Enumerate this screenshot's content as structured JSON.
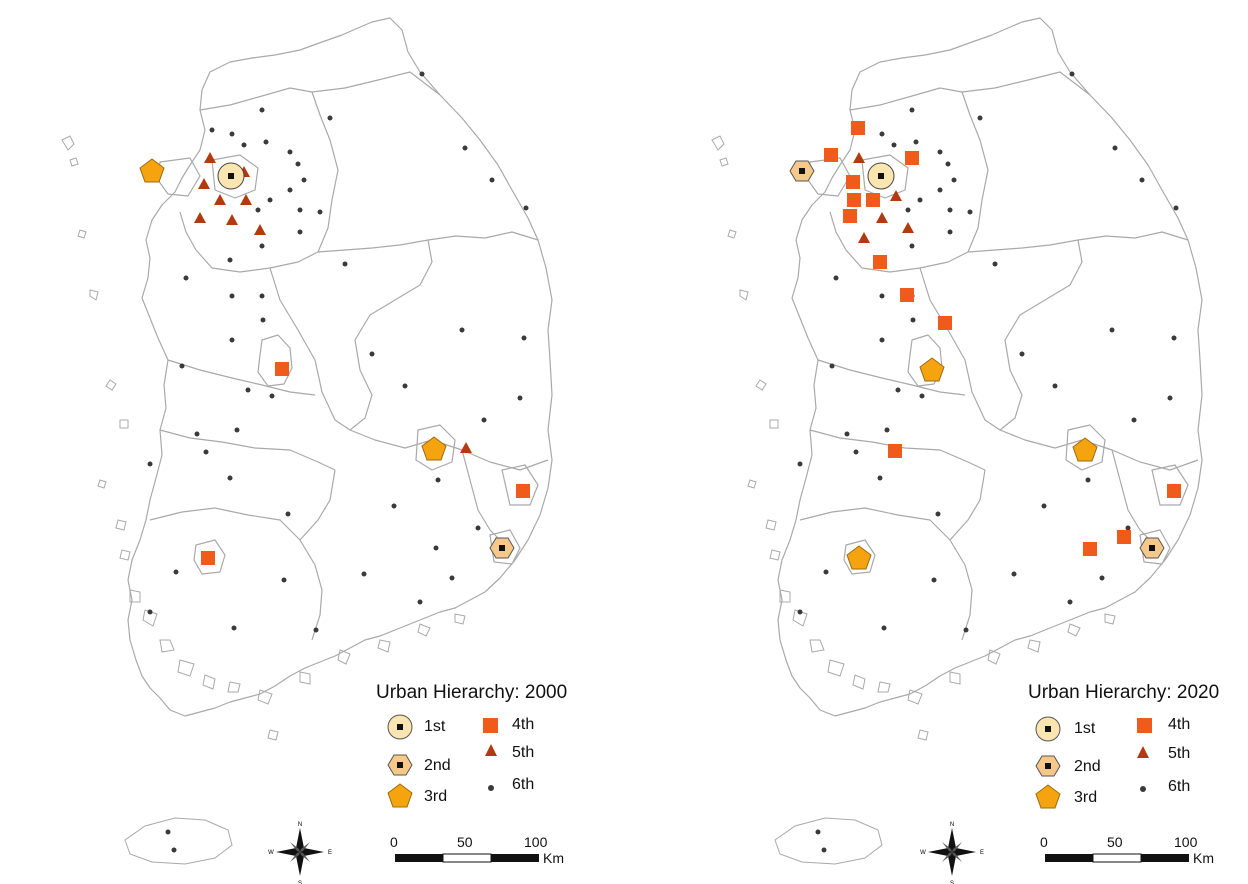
{
  "maps": [
    {
      "id": "map-2000",
      "legend": {
        "title": "Urban Hierarchy: 2000",
        "items": [
          {
            "rank": "1st",
            "label": "1st"
          },
          {
            "rank": "2nd",
            "label": "2nd"
          },
          {
            "rank": "3rd",
            "label": "3rd"
          },
          {
            "rank": "4th",
            "label": "4th"
          },
          {
            "rank": "5th",
            "label": "5th"
          },
          {
            "rank": "6th",
            "label": "6th"
          }
        ]
      },
      "scale": {
        "ticks": [
          "0",
          "50",
          "100"
        ],
        "unit": "Km"
      }
    },
    {
      "id": "map-2020",
      "legend": {
        "title": "Urban Hierarchy: 2020",
        "items": [
          {
            "rank": "1st",
            "label": "1st"
          },
          {
            "rank": "2nd",
            "label": "2nd"
          },
          {
            "rank": "3rd",
            "label": "3rd"
          },
          {
            "rank": "4th",
            "label": "4th"
          },
          {
            "rank": "5th",
            "label": "5th"
          },
          {
            "rank": "6th",
            "label": "6th"
          }
        ]
      },
      "scale": {
        "ticks": [
          "0",
          "50",
          "100"
        ],
        "unit": "Km"
      }
    }
  ],
  "symbology": {
    "1st": {
      "shape": "circle-with-square",
      "fill": "#FBE5B0"
    },
    "2nd": {
      "shape": "hexagon-with-square",
      "fill": "#F6C98A"
    },
    "3rd": {
      "shape": "pentagon",
      "fill": "#F5A410"
    },
    "4th": {
      "shape": "square",
      "fill": "#F05A1A"
    },
    "5th": {
      "shape": "triangle",
      "fill": "#B33A10"
    },
    "6th": {
      "shape": "dot",
      "fill": "#3A3A3A"
    },
    "boundary_color": "#A9A9A9"
  },
  "compass": {
    "icon": "compass-rose-icon",
    "n": "N",
    "s": "S",
    "e": "E",
    "w": "W"
  }
}
